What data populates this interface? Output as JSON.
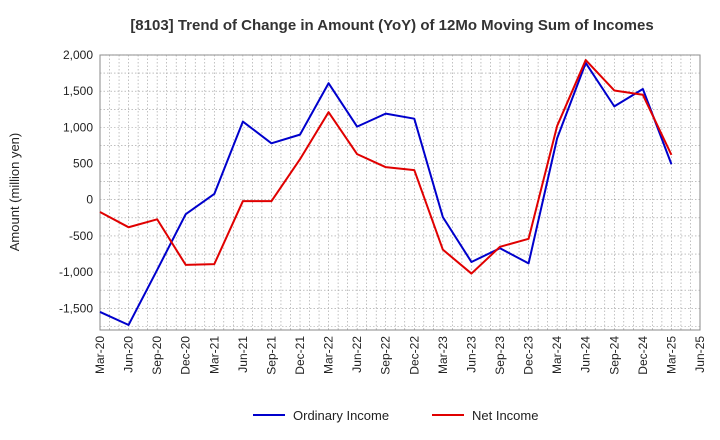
{
  "chart_data": {
    "type": "line",
    "title": "[8103]  Trend of Change in Amount (YoY) of 12Mo Moving Sum of Incomes",
    "xlabel": "",
    "ylabel": "Amount (million yen)",
    "ylim": [
      -1800,
      2000
    ],
    "y_ticks": [
      2000,
      1500,
      1000,
      500,
      0,
      -500,
      -1000,
      -1500
    ],
    "y_tick_labels": [
      "2,000",
      "1,500",
      "1,000",
      "500",
      "0",
      "-500",
      "-1,000",
      "-1,500"
    ],
    "x_tick_labels": [
      "Mar-20",
      "Jun-20",
      "Sep-20",
      "Dec-20",
      "Mar-21",
      "Jun-21",
      "Sep-21",
      "Dec-21",
      "Mar-22",
      "Jun-22",
      "Sep-22",
      "Dec-22",
      "Mar-23",
      "Jun-23",
      "Sep-23",
      "Dec-23",
      "Mar-24",
      "Jun-24",
      "Sep-24",
      "Dec-24",
      "Mar-25",
      "Jun-25"
    ],
    "grid": true,
    "legend_position": "bottom",
    "series": [
      {
        "name": "Ordinary Income",
        "color": "#0000cc",
        "values": [
          -1550,
          -1730,
          -970,
          -200,
          80,
          1080,
          780,
          900,
          1610,
          1010,
          1190,
          1120,
          -240,
          -860,
          -670,
          -880,
          850,
          1890,
          1290,
          1530,
          490
        ]
      },
      {
        "name": "Net Income",
        "color": "#e00000",
        "values": [
          -170,
          -380,
          -270,
          -900,
          -890,
          -20,
          -20,
          560,
          1210,
          630,
          450,
          410,
          -690,
          -1020,
          -650,
          -540,
          1020,
          1930,
          1510,
          1450,
          620
        ]
      }
    ]
  }
}
